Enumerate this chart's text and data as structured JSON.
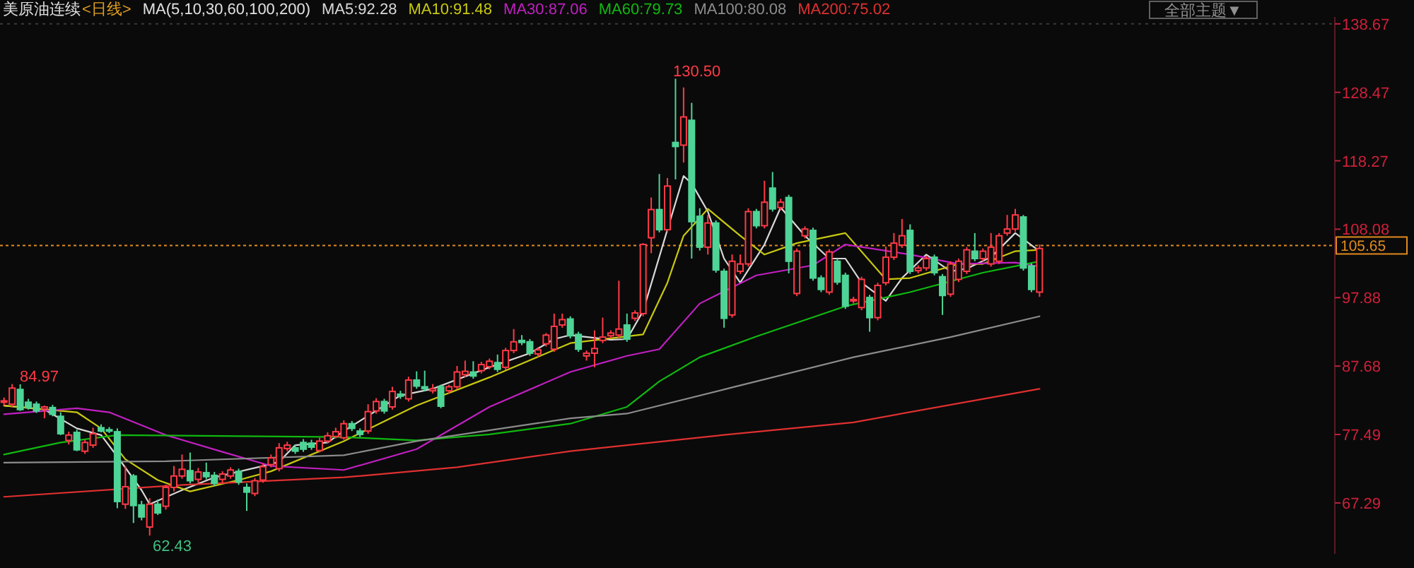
{
  "chart_data": {
    "type": "candlestick",
    "title": "美原油连续",
    "subtitle": "<日线>",
    "legend_title": "MA(5,10,30,60,100,200)",
    "legend": "top",
    "tick_labels": "y",
    "categories": [
      null,
      null,
      null,
      null,
      null,
      null,
      null,
      null,
      null,
      null,
      null,
      null,
      null,
      null,
      null,
      null,
      null,
      null,
      null,
      null,
      null,
      null,
      null,
      null,
      null,
      null,
      null,
      null,
      null,
      null,
      null,
      null,
      null,
      null,
      null,
      null,
      null,
      null,
      null,
      null,
      null,
      null,
      null,
      null,
      null,
      null,
      null,
      null,
      null,
      null,
      null,
      null,
      null,
      null,
      null,
      null,
      null,
      null,
      null,
      null,
      null,
      null,
      null,
      null,
      null,
      null,
      null,
      null,
      null,
      null,
      null,
      null,
      null,
      null,
      null,
      null,
      null,
      null,
      null,
      null,
      null,
      null,
      null,
      null,
      null,
      null,
      null,
      null,
      null,
      null,
      null,
      null,
      null,
      null,
      null,
      null,
      null,
      null,
      null,
      null,
      null,
      null,
      null,
      null,
      null,
      null,
      null,
      null,
      null,
      null,
      null,
      null,
      null,
      null,
      null,
      null,
      null,
      null,
      null,
      null,
      null,
      null,
      null,
      null,
      null,
      null,
      null,
      null,
      null,
      null,
      null,
      null,
      null,
      null,
      null,
      null,
      null,
      null,
      null,
      null,
      null,
      null,
      null,
      null,
      null,
      null,
      null,
      null,
      null,
      null,
      null,
      null,
      null,
      null,
      null,
      null,
      null,
      null,
      null,
      null,
      null,
      null,
      null,
      null,
      null
    ],
    "ohlc": [
      [
        82.3,
        83.0,
        81.8,
        82.5
      ],
      [
        82.0,
        85.0,
        81.6,
        84.4
      ],
      [
        84.2,
        84.97,
        81.0,
        81.2
      ],
      [
        82.3,
        82.8,
        81.2,
        81.5
      ],
      [
        82.0,
        82.4,
        80.7,
        81.0
      ],
      [
        81.3,
        81.8,
        79.9,
        81.6
      ],
      [
        81.5,
        81.9,
        80.2,
        80.5
      ],
      [
        80.2,
        80.8,
        77.4,
        77.6
      ],
      [
        76.6,
        77.9,
        76.0,
        77.4
      ],
      [
        77.8,
        78.2,
        75.0,
        75.2
      ],
      [
        75.0,
        76.7,
        74.6,
        76.3
      ],
      [
        75.9,
        78.5,
        75.5,
        77.6
      ],
      [
        78.5,
        79.0,
        77.8,
        78.0
      ],
      [
        78.2,
        78.6,
        77.7,
        78.0
      ],
      [
        77.9,
        78.4,
        66.5,
        67.5
      ],
      [
        67.1,
        72.8,
        66.4,
        69.7
      ],
      [
        71.3,
        71.6,
        64.3,
        66.9
      ],
      [
        67.0,
        67.6,
        64.7,
        65.2
      ],
      [
        63.7,
        68.0,
        62.43,
        67.1
      ],
      [
        67.1,
        67.8,
        65.5,
        65.8
      ],
      [
        66.8,
        70.0,
        66.3,
        69.6
      ],
      [
        69.6,
        72.8,
        69.0,
        71.3
      ],
      [
        71.3,
        74.5,
        70.9,
        72.3
      ],
      [
        72.1,
        74.8,
        70.2,
        70.6
      ],
      [
        70.8,
        72.5,
        70.3,
        71.9
      ],
      [
        71.8,
        73.3,
        70.8,
        71.2
      ],
      [
        71.4,
        71.9,
        69.8,
        70.2
      ],
      [
        70.8,
        72.0,
        70.3,
        71.6
      ],
      [
        71.3,
        72.6,
        70.9,
        72.2
      ],
      [
        72.0,
        72.4,
        70.0,
        70.4
      ],
      [
        69.6,
        70.2,
        66.1,
        68.9
      ],
      [
        68.7,
        71.0,
        68.3,
        70.6
      ],
      [
        70.7,
        73.2,
        70.3,
        72.7
      ],
      [
        73.0,
        74.5,
        72.6,
        74.0
      ],
      [
        72.4,
        76.2,
        72.0,
        75.5
      ],
      [
        75.4,
        76.4,
        75.0,
        75.9
      ],
      [
        75.5,
        76.0,
        74.6,
        75.0
      ],
      [
        76.3,
        76.8,
        74.9,
        75.3
      ],
      [
        76.2,
        76.7,
        75.2,
        75.6
      ],
      [
        75.1,
        77.0,
        74.8,
        76.5
      ],
      [
        76.5,
        77.8,
        76.2,
        77.3
      ],
      [
        77.2,
        78.5,
        76.9,
        77.9
      ],
      [
        77.0,
        79.6,
        76.7,
        79.1
      ],
      [
        79.1,
        79.5,
        78.0,
        78.4
      ],
      [
        78.0,
        78.4,
        77.1,
        77.5
      ],
      [
        78.0,
        82.0,
        77.6,
        80.9
      ],
      [
        81.0,
        82.9,
        80.6,
        82.4
      ],
      [
        82.4,
        82.8,
        80.6,
        81.0
      ],
      [
        81.6,
        84.6,
        81.2,
        83.9
      ],
      [
        83.5,
        84.0,
        82.8,
        83.2
      ],
      [
        82.8,
        86.1,
        82.4,
        85.6
      ],
      [
        85.6,
        86.9,
        84.3,
        84.7
      ],
      [
        84.6,
        87.0,
        83.9,
        84.3
      ],
      [
        84.0,
        85.0,
        83.6,
        84.3
      ],
      [
        84.6,
        84.9,
        81.4,
        81.7
      ],
      [
        84.0,
        84.9,
        83.6,
        84.6
      ],
      [
        84.6,
        87.7,
        84.2,
        86.8
      ],
      [
        86.4,
        88.5,
        86.0,
        86.9
      ],
      [
        86.8,
        88.4,
        85.8,
        86.2
      ],
      [
        87.0,
        88.3,
        86.6,
        87.9
      ],
      [
        87.6,
        88.8,
        87.2,
        88.4
      ],
      [
        88.2,
        89.4,
        86.8,
        87.2
      ],
      [
        87.5,
        90.4,
        87.1,
        90.0
      ],
      [
        90.0,
        93.2,
        89.6,
        91.3
      ],
      [
        91.5,
        92.3,
        90.8,
        91.2
      ],
      [
        91.3,
        91.7,
        89.2,
        89.6
      ],
      [
        89.5,
        90.5,
        89.0,
        90.1
      ],
      [
        91.0,
        92.6,
        90.6,
        92.3
      ],
      [
        90.2,
        95.5,
        89.8,
        93.6
      ],
      [
        93.8,
        95.5,
        93.4,
        94.6
      ],
      [
        94.7,
        95.1,
        91.8,
        92.2
      ],
      [
        92.4,
        92.8,
        89.8,
        90.2
      ],
      [
        89.2,
        90.0,
        88.5,
        89.6
      ],
      [
        89.6,
        93.0,
        87.5,
        90.3
      ],
      [
        91.5,
        94.9,
        91.1,
        92.0
      ],
      [
        92.2,
        93.0,
        91.8,
        92.6
      ],
      [
        92.3,
        100.4,
        91.9,
        93.2
      ],
      [
        93.8,
        95.5,
        91.3,
        91.7
      ],
      [
        94.8,
        96.0,
        94.4,
        95.6
      ],
      [
        95.5,
        106.0,
        95.1,
        105.8
      ],
      [
        106.8,
        112.8,
        104.5,
        111.0
      ],
      [
        111.0,
        116.3,
        107.6,
        108.0
      ],
      [
        108.0,
        115.7,
        107.6,
        114.5
      ],
      [
        121.0,
        130.5,
        115.5,
        120.4
      ],
      [
        120.6,
        129.2,
        118.0,
        124.8
      ],
      [
        124.3,
        126.9,
        103.7,
        109.2
      ],
      [
        110.0,
        111.2,
        104.9,
        105.4
      ],
      [
        105.4,
        110.2,
        104.3,
        109.0
      ],
      [
        109.0,
        109.4,
        101.6,
        102.0
      ],
      [
        101.8,
        102.2,
        93.4,
        94.8
      ],
      [
        95.3,
        104.3,
        94.9,
        103.3
      ],
      [
        101.8,
        104.3,
        101.4,
        102.9
      ],
      [
        102.9,
        111.2,
        102.5,
        110.7
      ],
      [
        110.7,
        111.1,
        108.2,
        108.6
      ],
      [
        108.6,
        115.3,
        108.2,
        112.1
      ],
      [
        114.2,
        116.6,
        110.7,
        111.1
      ],
      [
        111.3,
        112.6,
        110.9,
        112.1
      ],
      [
        112.8,
        113.2,
        101.5,
        103.3
      ],
      [
        98.5,
        105.2,
        98.1,
        104.8
      ],
      [
        107.1,
        108.5,
        106.7,
        108.1
      ],
      [
        107.9,
        108.3,
        100.4,
        100.8
      ],
      [
        100.8,
        101.2,
        98.7,
        99.1
      ],
      [
        98.7,
        105.1,
        98.3,
        104.7
      ],
      [
        103.3,
        103.7,
        99.8,
        100.2
      ],
      [
        101.2,
        101.6,
        96.2,
        96.6
      ],
      [
        97.4,
        98.0,
        97.0,
        97.6
      ],
      [
        96.4,
        101.0,
        96.0,
        100.6
      ],
      [
        97.9,
        98.3,
        92.8,
        94.9
      ],
      [
        94.9,
        100.1,
        94.5,
        99.7
      ],
      [
        100.1,
        105.5,
        99.7,
        103.9
      ],
      [
        103.9,
        107.5,
        103.5,
        106.0
      ],
      [
        105.7,
        109.6,
        105.3,
        107.1
      ],
      [
        107.9,
        108.8,
        101.4,
        101.8
      ],
      [
        101.9,
        102.7,
        101.5,
        102.3
      ],
      [
        102.3,
        104.1,
        101.9,
        103.7
      ],
      [
        103.9,
        104.3,
        101.2,
        101.6
      ],
      [
        101.0,
        101.4,
        95.3,
        98.2
      ],
      [
        98.4,
        103.3,
        98.0,
        102.9
      ],
      [
        100.6,
        103.7,
        100.2,
        103.3
      ],
      [
        101.8,
        105.4,
        101.4,
        105.0
      ],
      [
        104.8,
        107.5,
        103.3,
        103.7
      ],
      [
        103.7,
        105.2,
        103.3,
        104.8
      ],
      [
        102.9,
        107.5,
        102.5,
        105.4
      ],
      [
        103.3,
        107.5,
        102.9,
        107.1
      ],
      [
        107.5,
        110.2,
        107.1,
        108.1
      ],
      [
        108.1,
        111.1,
        107.7,
        110.2
      ],
      [
        109.9,
        110.2,
        101.9,
        102.3
      ],
      [
        102.6,
        103.0,
        98.7,
        99.1
      ],
      [
        98.7,
        105.8,
        98.0,
        105.2
      ],
      null,
      null,
      null,
      null,
      null,
      null,
      null,
      null,
      null,
      null,
      null,
      null,
      null,
      null,
      null,
      null,
      null,
      null,
      null,
      null,
      null,
      null,
      null,
      null,
      null,
      null,
      null,
      null,
      null,
      null,
      null,
      null,
      null,
      null,
      null,
      null
    ],
    "series": [
      {
        "type": "line",
        "name": "MA5:92.28",
        "color": "#d8d8d8",
        "values": [
          81.8,
          null,
          null,
          null,
          null,
          81.2,
          null,
          null,
          null,
          78.4,
          null,
          null,
          77.4,
          null,
          74.2,
          null,
          null,
          69.2,
          67.1,
          null,
          null,
          null,
          69.2,
          null,
          null,
          null,
          71.1,
          null,
          null,
          null,
          null,
          null,
          72.8,
          null,
          73.4,
          null,
          75.9,
          null,
          null,
          null,
          76.3,
          null,
          78.0,
          null,
          null,
          null,
          null,
          null,
          null,
          83.3,
          null,
          null,
          null,
          84.3,
          null,
          null,
          null,
          null,
          null,
          null,
          87.5,
          null,
          null,
          null,
          null,
          89.6,
          null,
          null,
          91.7,
          null,
          92.3,
          null,
          null,
          null,
          null,
          91.6,
          null,
          91.7,
          null,
          95.9,
          null,
          null,
          108.0,
          null,
          116.0,
          114.9,
          null,
          110.7,
          null,
          103.7,
          null,
          100.1,
          null,
          null,
          105.8,
          null,
          111.3,
          null,
          null,
          107.1,
          null,
          null,
          103.7,
          null,
          103.7,
          null,
          100.1,
          null,
          null,
          97.4,
          null,
          100.8,
          null,
          null,
          104.3,
          null,
          null,
          101.8,
          null,
          102.2,
          null,
          null,
          103.9,
          null,
          null,
          107.5,
          null,
          null,
          104.8,
          null,
          null,
          null,
          null,
          null,
          null,
          null,
          null,
          null,
          null,
          null,
          null,
          null,
          null,
          null,
          null,
          null,
          null,
          null,
          null,
          null,
          null,
          null,
          null,
          null,
          null,
          null,
          null,
          null,
          null,
          null,
          null,
          null,
          null,
          null,
          null
        ]
      },
      {
        "type": "line",
        "name": "MA10:91.48",
        "color": "#c8c810",
        "values": [
          81.8,
          null,
          null,
          null,
          null,
          null,
          null,
          null,
          null,
          80.8,
          null,
          null,
          78.4,
          null,
          null,
          73.8,
          null,
          null,
          null,
          70.7,
          null,
          null,
          null,
          69.0,
          null,
          null,
          null,
          null,
          null,
          70.7,
          null,
          null,
          null,
          72.0,
          null,
          null,
          null,
          null,
          null,
          null,
          null,
          null,
          76.5,
          null,
          null,
          null,
          null,
          null,
          null,
          null,
          null,
          81.8,
          null,
          null,
          null,
          null,
          null,
          null,
          null,
          null,
          86.0,
          null,
          null,
          null,
          null,
          null,
          null,
          null,
          null,
          null,
          91.1,
          null,
          null,
          null,
          null,
          null,
          null,
          92.1,
          null,
          92.4,
          null,
          null,
          100.1,
          null,
          107.1,
          null,
          null,
          111.1,
          null,
          null,
          null,
          107.1,
          null,
          null,
          104.3,
          null,
          null,
          null,
          106.0,
          null,
          null,
          null,
          null,
          null,
          107.5,
          null,
          null,
          null,
          null,
          100.6,
          null,
          null,
          100.8,
          null,
          null,
          null,
          null,
          null,
          102.9,
          null,
          null,
          102.9,
          null,
          null,
          null,
          104.8,
          null,
          null,
          105.0,
          null,
          null,
          null,
          null,
          null,
          null,
          null,
          null,
          null,
          null,
          null,
          null,
          null,
          null,
          null,
          null,
          null,
          null,
          null,
          null,
          null,
          null,
          null,
          null,
          null,
          null,
          null,
          null,
          null,
          null,
          null,
          null,
          null,
          null,
          null,
          null
        ]
      },
      {
        "type": "line",
        "name": "MA30:87.06",
        "color": "#c020c0",
        "values": [
          80.5,
          null,
          null,
          null,
          null,
          null,
          null,
          null,
          null,
          81.4,
          null,
          null,
          null,
          80.8,
          null,
          null,
          null,
          null,
          null,
          null,
          77.4,
          null,
          null,
          null,
          null,
          null,
          null,
          74.9,
          null,
          null,
          null,
          null,
          null,
          72.8,
          null,
          null,
          null,
          null,
          null,
          null,
          null,
          null,
          72.2,
          null,
          null,
          null,
          null,
          null,
          null,
          null,
          null,
          75.3,
          null,
          null,
          null,
          null,
          null,
          null,
          null,
          null,
          81.6,
          null,
          null,
          null,
          null,
          null,
          null,
          null,
          null,
          null,
          86.8,
          null,
          null,
          null,
          null,
          null,
          null,
          89.2,
          null,
          null,
          null,
          90.2,
          null,
          null,
          null,
          null,
          97.0,
          null,
          null,
          null,
          null,
          null,
          null,
          101.2,
          null,
          null,
          null,
          null,
          null,
          null,
          102.7,
          null,
          null,
          null,
          105.8,
          null,
          null,
          null,
          null,
          null,
          null,
          null,
          104.3,
          null,
          null,
          null,
          null,
          null,
          102.9,
          null,
          null,
          null,
          null,
          null,
          null,
          103.1,
          null,
          null,
          102.5,
          null,
          null,
          null,
          null,
          null,
          null,
          null,
          null,
          null,
          null,
          null,
          null,
          null,
          null,
          null,
          null,
          null,
          null,
          null,
          null,
          null,
          null,
          null,
          null,
          null,
          null,
          null,
          null,
          null,
          null,
          null,
          null,
          null,
          null,
          null,
          null
        ]
      },
      {
        "type": "line",
        "name": "MA60:79.73",
        "color": "#10b810",
        "values": [
          74.5,
          null,
          null,
          null,
          null,
          null,
          null,
          76.3,
          null,
          null,
          null,
          null,
          null,
          null,
          77.4,
          null,
          null,
          null,
          null,
          null,
          null,
          null,
          null,
          null,
          null,
          null,
          null,
          null,
          null,
          null,
          null,
          null,
          null,
          null,
          null,
          null,
          null,
          null,
          null,
          null,
          null,
          null,
          77.1,
          null,
          null,
          null,
          null,
          null,
          null,
          null,
          null,
          76.6,
          null,
          null,
          null,
          null,
          null,
          null,
          null,
          null,
          77.5,
          null,
          null,
          null,
          null,
          null,
          null,
          null,
          null,
          null,
          79.1,
          null,
          null,
          null,
          null,
          null,
          null,
          81.6,
          null,
          null,
          null,
          85.4,
          null,
          null,
          null,
          null,
          89.0,
          null,
          null,
          null,
          null,
          null,
          null,
          92.1,
          null,
          null,
          null,
          null,
          null,
          null,
          null,
          null,
          null,
          null,
          96.6,
          null,
          null,
          null,
          null,
          null,
          null,
          null,
          98.7,
          null,
          null,
          null,
          null,
          null,
          null,
          null,
          null,
          101.6,
          null,
          null,
          null,
          null,
          null,
          null,
          103.3,
          null,
          null,
          null,
          null,
          null,
          null,
          null,
          null,
          null,
          null,
          null,
          null,
          null,
          null,
          null,
          null,
          null,
          null,
          null,
          null,
          null,
          null,
          null,
          null,
          null,
          null,
          null,
          null,
          null,
          null,
          null,
          null,
          null,
          null,
          null,
          null
        ]
      },
      {
        "type": "line",
        "name": "MA100:80.08",
        "color": "#8c8c8c",
        "values": [
          73.3,
          null,
          null,
          null,
          null,
          null,
          null,
          null,
          null,
          null,
          null,
          null,
          null,
          null,
          null,
          null,
          null,
          null,
          null,
          null,
          73.5,
          null,
          null,
          null,
          null,
          null,
          null,
          null,
          null,
          null,
          null,
          null,
          null,
          null,
          null,
          null,
          null,
          null,
          null,
          null,
          null,
          null,
          74.4,
          null,
          null,
          null,
          null,
          null,
          null,
          null,
          null,
          76.5,
          null,
          null,
          null,
          null,
          null,
          null,
          null,
          null,
          null,
          null,
          null,
          null,
          null,
          null,
          null,
          null,
          null,
          null,
          79.9,
          null,
          null,
          null,
          null,
          null,
          null,
          80.6,
          null,
          null,
          null,
          null,
          null,
          null,
          null,
          null,
          null,
          null,
          null,
          null,
          84.5,
          null,
          null,
          null,
          null,
          null,
          null,
          null,
          null,
          null,
          null,
          null,
          null,
          null,
          null,
          89.0,
          null,
          null,
          null,
          null,
          null,
          null,
          null,
          null,
          null,
          null,
          null,
          92.0,
          null,
          null,
          null,
          null,
          null,
          null,
          null,
          null,
          null,
          null,
          95.1,
          null,
          null,
          null,
          null,
          null,
          null,
          null,
          null,
          null,
          null,
          null,
          null,
          null,
          null,
          null,
          null,
          null,
          null,
          null,
          null,
          null,
          null,
          null,
          null,
          null,
          null,
          null,
          null,
          null,
          null,
          null,
          null,
          null,
          null,
          null,
          null
        ]
      },
      {
        "type": "line",
        "name": "MA200:75.02",
        "color": "#e03030",
        "values": [
          68.2,
          null,
          null,
          null,
          null,
          null,
          null,
          null,
          null,
          null,
          null,
          null,
          null,
          null,
          null,
          null,
          null,
          null,
          null,
          null,
          null,
          69.9,
          null,
          null,
          null,
          null,
          null,
          null,
          null,
          null,
          null,
          null,
          null,
          null,
          null,
          null,
          null,
          null,
          null,
          null,
          null,
          null,
          71.1,
          null,
          null,
          null,
          null,
          null,
          null,
          null,
          null,
          null,
          null,
          null,
          null,
          null,
          72.6,
          null,
          null,
          null,
          null,
          null,
          null,
          null,
          null,
          null,
          null,
          null,
          null,
          null,
          75.0,
          null,
          null,
          null,
          null,
          null,
          null,
          null,
          null,
          null,
          null,
          null,
          null,
          null,
          null,
          null,
          null,
          null,
          77.3,
          null,
          null,
          null,
          null,
          null,
          null,
          null,
          null,
          null,
          null,
          null,
          null,
          null,
          null,
          null,
          null,
          79.3,
          null,
          null,
          null,
          null,
          null,
          null,
          null,
          null,
          null,
          null,
          null,
          null,
          null,
          null,
          null,
          null,
          null,
          null,
          null,
          null,
          null,
          null,
          84.3,
          null,
          null,
          null,
          null,
          null,
          null,
          null,
          null,
          null,
          null,
          null,
          null,
          null,
          null,
          null,
          null,
          null,
          null,
          null,
          null,
          null,
          null,
          null,
          null,
          null,
          null,
          null,
          null,
          null,
          null,
          null,
          null,
          null,
          null,
          null,
          null
        ]
      }
    ],
    "ylim": [
      59.7,
      139.7
    ],
    "yticks": [
      67.29,
      77.49,
      87.68,
      97.88,
      108.08,
      118.27,
      128.47,
      138.67
    ],
    "ref_lines": [
      {
        "axis": "y",
        "value": 105.65,
        "label": "105.65",
        "color": "#e08a1e",
        "line_style": "dotted"
      }
    ],
    "annotations": [
      "130.50",
      "84.97",
      "62.43",
      "全部主题▼"
    ]
  }
}
